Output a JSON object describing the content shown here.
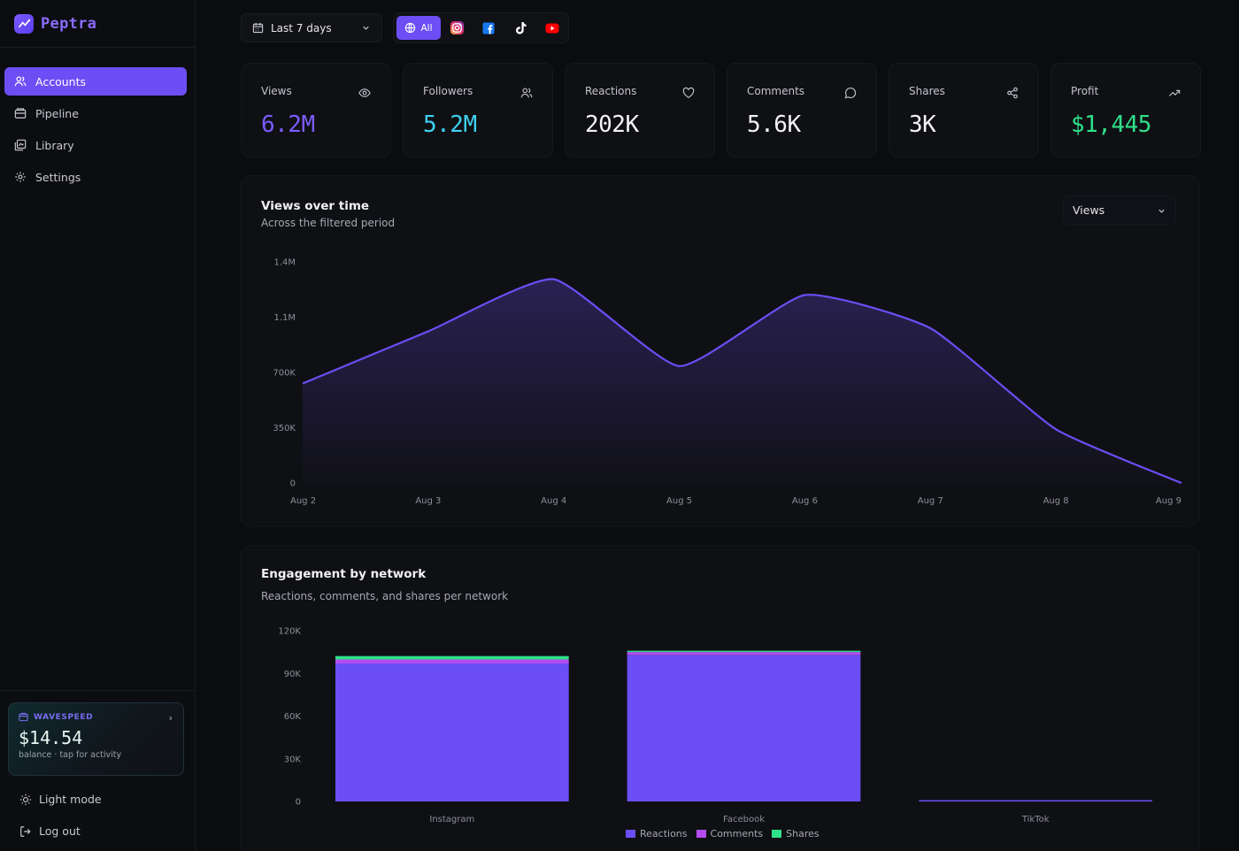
{
  "app": {
    "name": "Peptra"
  },
  "sidebar": {
    "items": [
      {
        "label": "Accounts",
        "icon": "users-icon",
        "active": true
      },
      {
        "label": "Pipeline",
        "icon": "pipeline-icon",
        "active": false
      },
      {
        "label": "Library",
        "icon": "library-icon",
        "active": false
      },
      {
        "label": "Settings",
        "icon": "gear-icon",
        "active": false
      }
    ],
    "wallet": {
      "brand": "WAVESPEED",
      "amount": "$14.54",
      "subtitle": "balance · tap for activity"
    },
    "light_mode_label": "Light mode",
    "logout_label": "Log out"
  },
  "toolbar": {
    "date_range": "Last 7 days",
    "networks": [
      {
        "label": "All",
        "icon": "globe-icon",
        "selected": true
      },
      {
        "label": "",
        "icon": "instagram-icon",
        "color": "#e1306c"
      },
      {
        "label": "",
        "icon": "facebook-icon",
        "color": "#1877f2"
      },
      {
        "label": "",
        "icon": "tiktok-icon",
        "color": "#ffffff"
      },
      {
        "label": "",
        "icon": "youtube-icon",
        "color": "#ff0000"
      }
    ]
  },
  "kpis": [
    {
      "label": "Views",
      "value": "6.2M",
      "icon": "eye-icon",
      "color": "#7c5cff"
    },
    {
      "label": "Followers",
      "value": "5.2M",
      "icon": "users-icon",
      "color": "#3ed0f0"
    },
    {
      "label": "Reactions",
      "value": "202K",
      "icon": "heart-icon",
      "color": "#f2f2f4"
    },
    {
      "label": "Comments",
      "value": "5.6K",
      "icon": "comment-icon",
      "color": "#f2f2f4"
    },
    {
      "label": "Shares",
      "value": "3K",
      "icon": "share-icon",
      "color": "#f2f2f4"
    },
    {
      "label": "Profit",
      "value": "$1,445",
      "icon": "trending-up-icon",
      "color": "#2fe08a"
    }
  ],
  "views_chart": {
    "title": "Views over time",
    "subtitle": "Across the filtered period",
    "metric_select": "Views",
    "chart_data": {
      "type": "area",
      "categories": [
        "Aug 2",
        "Aug 3",
        "Aug 4",
        "Aug 5",
        "Aug 6",
        "Aug 7",
        "Aug 8",
        "Aug 9"
      ],
      "series": [
        {
          "values": [
            630000,
            960000,
            1290000,
            740000,
            1190000,
            980000,
            340000,
            0
          ]
        }
      ],
      "y_ticks": [
        "0",
        "350K",
        "700K",
        "1.1M",
        "1.4M"
      ],
      "y_tick_values": [
        0,
        350000,
        700000,
        1050000,
        1400000
      ],
      "ylim": [
        0,
        1400000
      ],
      "color": "#6c4ef5"
    }
  },
  "engagement_chart": {
    "title": "Engagement by network",
    "subtitle": "Reactions, comments, and shares per network",
    "chart_data": {
      "type": "bar",
      "stacked": true,
      "categories": [
        "Instagram",
        "Facebook",
        "TikTok"
      ],
      "series": [
        {
          "name": "Reactions",
          "color": "#6c4ef5",
          "values": [
            97000,
            103000,
            500
          ]
        },
        {
          "name": "Comments",
          "color": "#b44cf0",
          "values": [
            2800,
            2000,
            0
          ]
        },
        {
          "name": "Shares",
          "color": "#2fe08a",
          "values": [
            2400,
            300,
            0
          ]
        }
      ],
      "y_ticks": [
        "0",
        "30K",
        "60K",
        "90K",
        "120K"
      ],
      "y_tick_values": [
        0,
        30000,
        60000,
        90000,
        120000
      ],
      "ylim": [
        0,
        120000
      ],
      "legend": "bottom-center"
    }
  }
}
